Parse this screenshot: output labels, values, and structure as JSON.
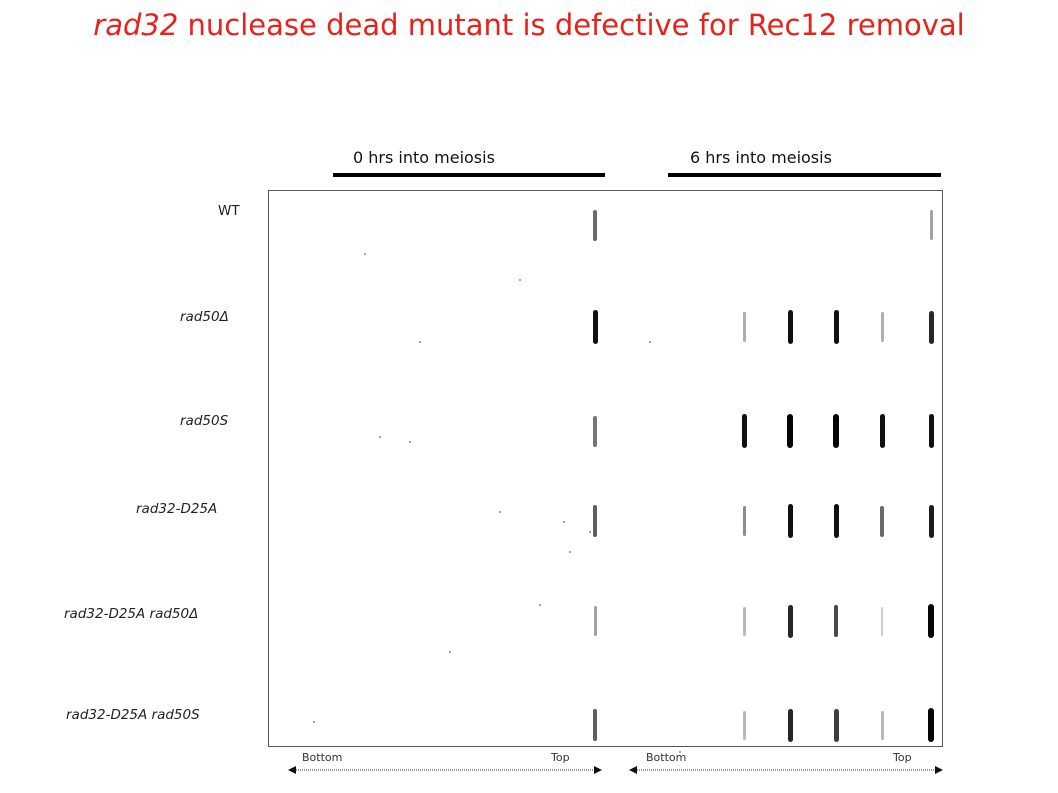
{
  "title": {
    "gene": "rad32",
    "rest": " nuclease dead mutant is defective for Rec12 removal"
  },
  "conditions": [
    {
      "label": "0 hrs into meiosis"
    },
    {
      "label": "6 hrs into meiosis"
    }
  ],
  "rows": [
    {
      "label": "WT",
      "italic": false
    },
    {
      "label": "rad50Δ",
      "italic": true
    },
    {
      "label": "rad50S",
      "italic": true
    },
    {
      "label": "rad32-D25A",
      "italic": true
    },
    {
      "label": "rad32-D25A rad50Δ",
      "italic": true
    },
    {
      "label": "rad32-D25A rad50S",
      "italic": true
    }
  ],
  "axis": {
    "left": {
      "bottom": "Bottom",
      "top": "Top"
    },
    "right": {
      "bottom": "Bottom",
      "top": "Top"
    }
  },
  "bands": {
    "lane_0h_top": [
      0.55,
      0.95,
      0.5,
      0.6,
      0.3,
      0.6
    ],
    "lane_6h_1": [
      0.0,
      0.25,
      0.95,
      0.4,
      0.2,
      0.2
    ],
    "lane_6h_2": [
      0.0,
      0.95,
      1.0,
      0.95,
      0.85,
      0.85
    ],
    "lane_6h_3": [
      0.0,
      0.95,
      1.0,
      0.95,
      0.7,
      0.75
    ],
    "lane_6h_4": [
      0.0,
      0.25,
      0.95,
      0.55,
      0.12,
      0.2
    ],
    "lane_6h_top": [
      0.3,
      0.85,
      0.95,
      0.9,
      1.0,
      1.0
    ]
  }
}
